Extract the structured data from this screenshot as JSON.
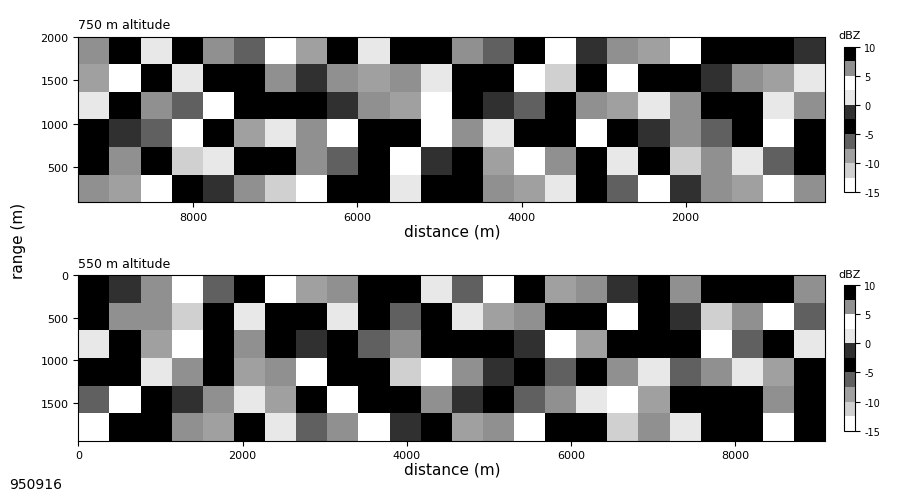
{
  "figure": {
    "y_label": "range (m)",
    "note": "950916"
  },
  "chart_data": [
    {
      "type": "heatmap",
      "title": "750 m altitude",
      "x_label": "distance (m)",
      "xlim": [
        9400,
        300
      ],
      "xticks": [
        8000,
        6000,
        4000,
        2000
      ],
      "ylim": [
        100,
        2000
      ],
      "yticks": [
        500,
        1000,
        1500,
        2000
      ],
      "cells": [
        [
          5,
          -8,
          3,
          10,
          -2,
          7,
          -12,
          4,
          9,
          -5,
          1,
          8,
          -3,
          6,
          -10,
          2,
          10,
          -6,
          4,
          -1,
          7,
          -9,
          3,
          5
        ],
        [
          -4,
          6,
          10,
          -11,
          2,
          -3,
          8,
          5,
          -7,
          10,
          3,
          -2,
          9,
          -8,
          4,
          7,
          -4,
          1,
          10,
          -12,
          5,
          2,
          -6,
          8
        ],
        [
          9,
          -1,
          -6,
          4,
          10,
          -9,
          2,
          7,
          3,
          -4,
          10,
          -13,
          5,
          1,
          8,
          -5,
          3,
          10,
          -2,
          6,
          -7,
          9,
          4,
          -3
        ],
        [
          2,
          10,
          5,
          -7,
          3,
          8,
          -4,
          10,
          -1,
          6,
          -9,
          4,
          10,
          -2,
          -6,
          9,
          5,
          -8,
          2,
          7,
          10,
          -4,
          1,
          6
        ],
        [
          -10,
          3,
          8,
          1,
          -5,
          10,
          6,
          -2,
          5,
          -8,
          7,
          2,
          -4,
          10,
          3,
          -11,
          8,
          4,
          -3,
          10,
          -1,
          6,
          -9,
          2
        ],
        [
          7,
          -3,
          1,
          9,
          6,
          -6,
          3,
          -9,
          10,
          2,
          -5,
          9,
          6,
          -7,
          10,
          4,
          -2,
          7,
          -10,
          3,
          8,
          -5,
          10,
          -1
        ]
      ],
      "colorbar": {
        "label": "dBZ",
        "range": [
          -15,
          10
        ],
        "ticks": [
          -15,
          -10,
          -5,
          0,
          5,
          10
        ]
      }
    },
    {
      "type": "heatmap",
      "title": "550 m altitude",
      "x_label": "distance (m)",
      "xlim": [
        0,
        9100
      ],
      "xticks": [
        0,
        2000,
        4000,
        6000,
        8000
      ],
      "ylim": [
        1950,
        0
      ],
      "yticks": [
        0,
        500,
        1000,
        1500
      ],
      "cells": [
        [
          3,
          9,
          -4,
          6,
          -9,
          10,
          2,
          -6,
          7,
          4,
          -1,
          10,
          -8,
          5,
          3,
          -3,
          9,
          -11,
          6,
          1,
          10,
          -5,
          4,
          8
        ],
        [
          -7,
          4,
          10,
          -2,
          5,
          1,
          -10,
          8,
          3,
          -5,
          9,
          6,
          -2,
          10,
          -6,
          7,
          2,
          4,
          -9,
          8,
          -3,
          10,
          6,
          -4
        ],
        [
          8,
          -5,
          2,
          7,
          10,
          -8,
          6,
          4,
          -3,
          10,
          -12,
          3,
          7,
          -1,
          9,
          -7,
          10,
          5,
          2,
          -6,
          7,
          1,
          -10,
          9
        ],
        [
          1,
          10,
          -9,
          4,
          -3,
          6,
          9,
          -1,
          10,
          -6,
          5,
          -4,
          10,
          8,
          -2,
          4,
          -8,
          9,
          -5,
          10,
          3,
          -7,
          8,
          2
        ],
        [
          -3,
          6,
          7,
          -12,
          9,
          2,
          -5,
          10,
          1,
          8,
          -7,
          9,
          2,
          -9,
          6,
          10,
          -4,
          3,
          8,
          -2,
          -11,
          6,
          4,
          -6
        ],
        [
          10,
          -2,
          5,
          3,
          -7,
          9,
          4,
          -8,
          6,
          -3,
          10,
          1,
          -6,
          4,
          9,
          -10,
          7,
          -1,
          10,
          5,
          -4,
          9,
          -3,
          7
        ]
      ],
      "colorbar": {
        "label": "dBZ",
        "range": [
          -15,
          10
        ],
        "ticks": [
          -15,
          -10,
          -5,
          0,
          5,
          10
        ]
      }
    }
  ]
}
